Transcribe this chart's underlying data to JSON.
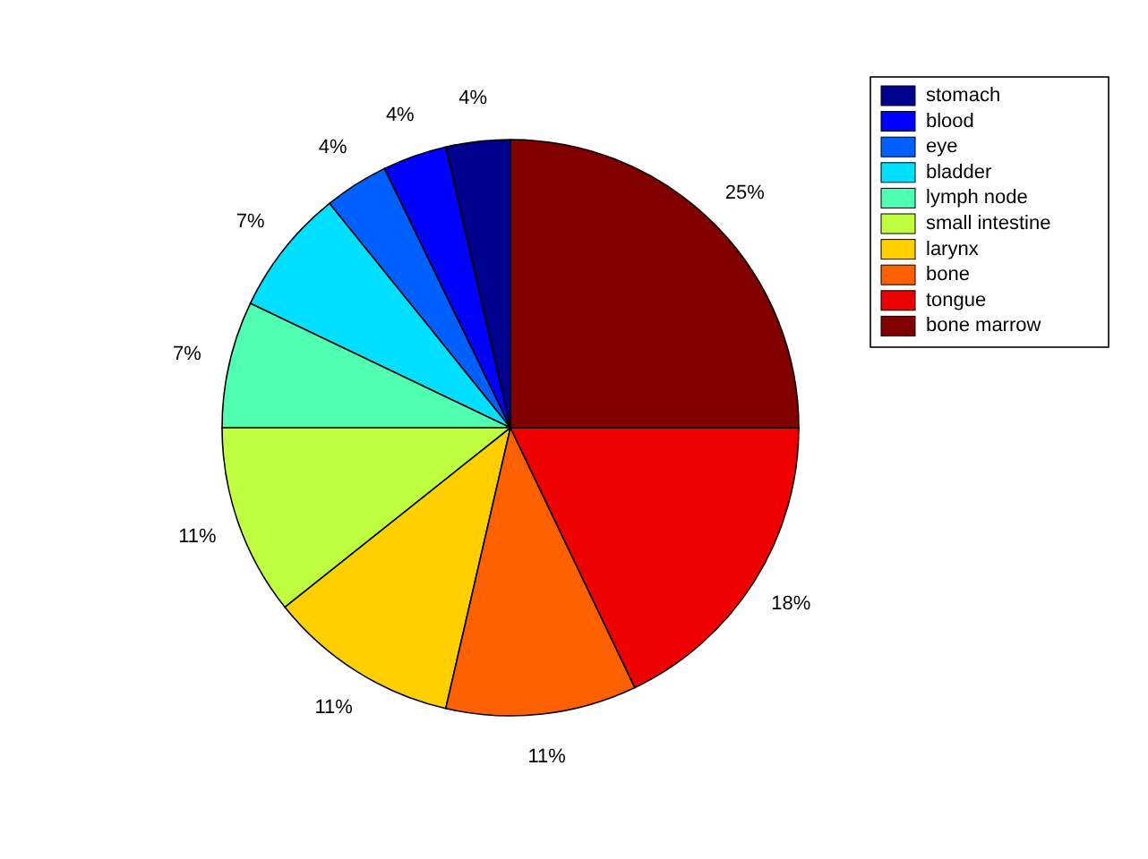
{
  "chart_data": {
    "type": "pie",
    "categories": [
      "stomach",
      "blood",
      "eye",
      "bladder",
      "lymph node",
      "small intestine",
      "larynx",
      "bone",
      "tongue",
      "bone marrow"
    ],
    "values": [
      3.6,
      3.6,
      3.6,
      7.1,
      7.1,
      10.7,
      10.7,
      10.7,
      17.9,
      25
    ],
    "value_labels": [
      "4%",
      "4%",
      "4%",
      "7%",
      "7%",
      "11%",
      "11%",
      "11%",
      "18%",
      "25%"
    ],
    "colors": [
      "#00008f",
      "#0000ff",
      "#0060ff",
      "#00dfff",
      "#50ffaf",
      "#bfff40",
      "#ffcf00",
      "#ff6000",
      "#ef0000",
      "#800000"
    ],
    "legend": "top right"
  }
}
